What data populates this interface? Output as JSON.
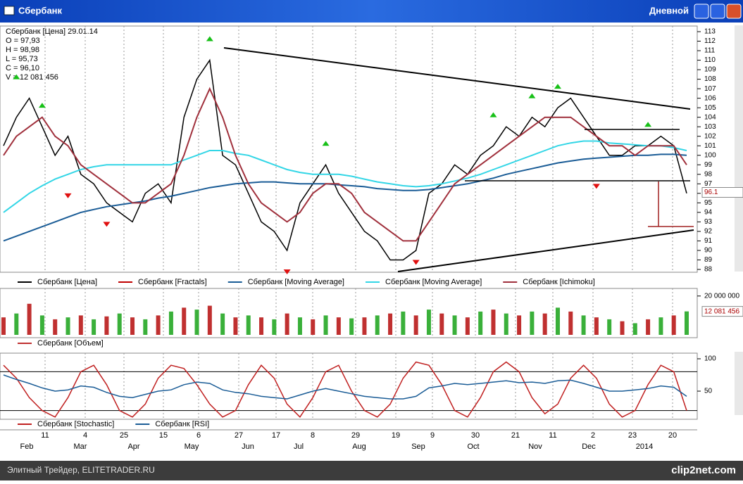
{
  "window": {
    "title": "Сбербанк",
    "mode": "Дневной"
  },
  "info": {
    "header": "Сбербанк [Цена] 29.01.14",
    "open": "O = 97,93",
    "high": "H = 98,98",
    "low": "L = 95,73",
    "close": "C = 96,10",
    "volume": "V = 12 081 456"
  },
  "chart_data": [
    {
      "type": "line",
      "series": [
        {
          "name": "Сбербанк [Цена]",
          "color": "#000000",
          "values": [
            101,
            104,
            106,
            103,
            100,
            102,
            98,
            97,
            95,
            94,
            93,
            96,
            97,
            95,
            104,
            108,
            110,
            100,
            99,
            96,
            93,
            92,
            90,
            95,
            97,
            99,
            96,
            94,
            92,
            91,
            89,
            89,
            90,
            96,
            97,
            99,
            98,
            100,
            101,
            103,
            102,
            104,
            103,
            105,
            106,
            104,
            102,
            100,
            100,
            101,
            101,
            102,
            101,
            96
          ]
        },
        {
          "name": "Сбербанк [Fractals]",
          "color": "#c00000",
          "values": [
            null,
            108,
            null,
            105,
            null,
            96,
            null,
            null,
            93,
            null,
            null,
            null,
            null,
            null,
            null,
            null,
            112,
            null,
            null,
            null,
            null,
            null,
            88,
            null,
            null,
            101,
            null,
            null,
            null,
            null,
            null,
            null,
            89,
            null,
            null,
            null,
            null,
            null,
            104,
            null,
            null,
            106,
            null,
            107,
            null,
            null,
            97,
            null,
            null,
            null,
            103,
            null,
            null,
            null
          ]
        },
        {
          "name": "Сбербанк [Moving Average]",
          "color": "#1a5c96",
          "values": [
            91,
            91.5,
            92,
            92.5,
            93,
            93.5,
            94,
            94.3,
            94.6,
            94.8,
            95,
            95.2,
            95.5,
            95.7,
            96,
            96.3,
            96.6,
            96.8,
            97,
            97.1,
            97.2,
            97.2,
            97.1,
            97,
            97,
            97,
            96.9,
            96.8,
            96.7,
            96.5,
            96.4,
            96.3,
            96.3,
            96.4,
            96.6,
            96.8,
            97,
            97.3,
            97.6,
            98,
            98.3,
            98.6,
            98.9,
            99.2,
            99.4,
            99.6,
            99.7,
            99.8,
            99.9,
            100,
            100,
            100.1,
            100.1,
            100
          ]
        },
        {
          "name": "Сбербанк [Moving Average]",
          "color": "#33d6e6",
          "values": [
            94,
            95,
            96,
            96.8,
            97.5,
            98,
            98.5,
            98.8,
            99,
            99,
            99,
            99,
            99,
            99,
            99.5,
            100,
            100.5,
            100.5,
            100.2,
            100,
            99.5,
            99,
            98.5,
            98.2,
            98,
            98,
            98,
            97.8,
            97.5,
            97.2,
            97,
            96.8,
            96.7,
            96.8,
            97,
            97.3,
            97.6,
            98,
            98.5,
            99,
            99.5,
            100,
            100.5,
            101,
            101.3,
            101.5,
            101.5,
            101.3,
            101.2,
            101.1,
            101,
            101,
            100.8,
            100.5
          ]
        },
        {
          "name": "Сбербанк [Ichimoku]",
          "color": "#a0303c",
          "values": [
            100,
            102,
            103,
            104,
            102,
            101,
            99,
            98,
            97,
            96,
            95,
            95,
            96,
            97,
            100,
            104,
            107,
            104,
            100,
            97,
            95,
            94,
            93,
            94,
            96,
            97,
            97,
            96,
            94,
            93,
            92,
            91,
            91,
            93,
            95,
            97,
            98,
            99,
            100,
            101,
            102,
            103,
            104,
            104,
            104,
            103,
            102,
            101,
            101,
            100,
            101,
            101,
            101,
            99
          ]
        }
      ],
      "ylim": [
        88,
        113
      ],
      "yticks": [
        88,
        89,
        90,
        91,
        92,
        93,
        94,
        95,
        96,
        97,
        98,
        99,
        100,
        101,
        102,
        103,
        104,
        105,
        106,
        107,
        108,
        109,
        110,
        111,
        112,
        113
      ],
      "last_value": 96.1
    },
    {
      "type": "bar",
      "series": [
        {
          "name": "Сбербанк [Объем]",
          "color": "#c03030",
          "values": [
            9000000,
            11000000,
            16000000,
            10000000,
            8000000,
            9000000,
            10000000,
            8000000,
            9500000,
            11000000,
            9000000,
            8000000,
            10000000,
            12000000,
            14000000,
            13000000,
            15000000,
            11000000,
            9000000,
            10000000,
            9000000,
            8000000,
            11000000,
            9000000,
            8000000,
            10000000,
            9000000,
            8500000,
            9000000,
            10000000,
            11000000,
            12000000,
            10000000,
            13000000,
            11000000,
            10000000,
            9000000,
            12000000,
            13000000,
            11000000,
            10000000,
            12000000,
            11000000,
            14000000,
            12000000,
            10000000,
            9000000,
            8000000,
            7000000,
            6000000,
            8000000,
            9000000,
            10000000,
            12081456
          ]
        }
      ],
      "ylim": [
        0,
        21000000
      ],
      "yticks": [
        {
          "value": 20000000,
          "label": "20 000 000"
        }
      ],
      "last_value": {
        "value": 12081456,
        "label": "12 081 456"
      }
    },
    {
      "type": "line",
      "series": [
        {
          "name": "Сбербанк [Stochastic]",
          "color": "#c02020",
          "values": [
            90,
            70,
            40,
            20,
            10,
            40,
            80,
            90,
            60,
            20,
            10,
            30,
            70,
            90,
            85,
            60,
            30,
            10,
            20,
            60,
            90,
            70,
            30,
            10,
            40,
            80,
            90,
            50,
            20,
            10,
            30,
            70,
            95,
            90,
            60,
            20,
            10,
            40,
            80,
            95,
            80,
            40,
            15,
            30,
            70,
            90,
            70,
            30,
            10,
            20,
            60,
            90,
            80,
            20
          ]
        },
        {
          "name": "Сбербанк [RSI]",
          "color": "#1a5c96",
          "values": [
            75,
            68,
            62,
            55,
            50,
            52,
            58,
            56,
            48,
            42,
            40,
            45,
            50,
            52,
            60,
            64,
            62,
            52,
            48,
            46,
            42,
            40,
            38,
            44,
            50,
            54,
            50,
            46,
            42,
            40,
            38,
            38,
            42,
            55,
            58,
            62,
            60,
            62,
            64,
            66,
            63,
            64,
            62,
            66,
            67,
            62,
            56,
            50,
            50,
            52,
            54,
            58,
            56,
            42
          ]
        }
      ],
      "ylim": [
        0,
        100
      ],
      "yticks": [
        50,
        100
      ],
      "levels": [
        20,
        80
      ]
    }
  ],
  "date_axis": {
    "days": [
      "11",
      "4",
      "25",
      "15",
      "6",
      "27",
      "17",
      "8",
      "29",
      "19",
      "9",
      "30",
      "21",
      "11",
      "2",
      "23",
      "20"
    ],
    "months": [
      "Feb",
      "Mar",
      "Apr",
      "May",
      "Jun",
      "Jul",
      "Aug",
      "Sep",
      "Oct",
      "Nov",
      "Dec",
      "2014"
    ]
  },
  "status": {
    "left": "Элитный Трейдер, ELITETRADER.RU",
    "right": "clip2net.com"
  }
}
